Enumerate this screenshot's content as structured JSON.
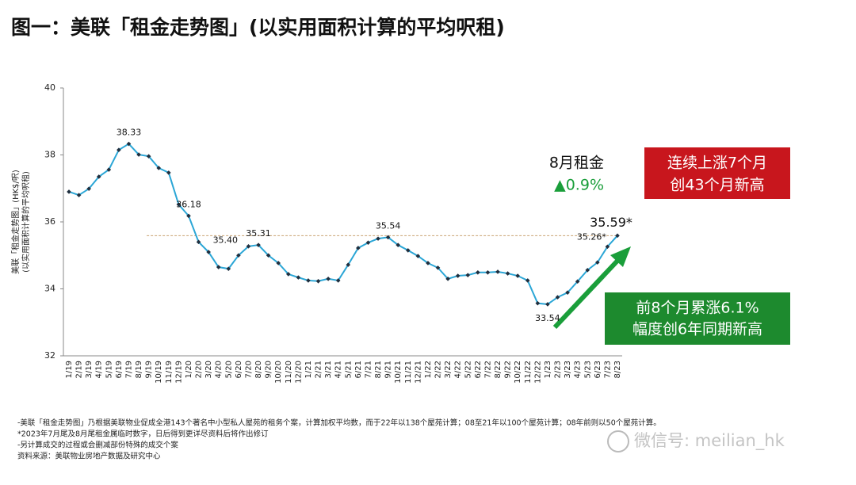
{
  "title": "图一：美联「租金走势图」(以实用面积计算的平均呎租)",
  "chart_data": {
    "type": "line",
    "y_label": [
      "美联「租金走势图」(HK$/呎)",
      "(以实用面积计算的平均呎租)"
    ],
    "categories": [
      "1/19",
      "2/19",
      "3/19",
      "4/19",
      "5/19",
      "6/19",
      "7/19",
      "8/19",
      "9/19",
      "10/19",
      "11/19",
      "12/19",
      "1/20",
      "2/20",
      "3/20",
      "4/20",
      "5/20",
      "6/20",
      "7/20",
      "8/20",
      "9/20",
      "10/20",
      "11/20",
      "12/20",
      "1/21",
      "2/21",
      "3/21",
      "4/21",
      "5/21",
      "6/21",
      "7/21",
      "8/21",
      "9/21",
      "10/21",
      "11/21",
      "12/21",
      "1/22",
      "2/22",
      "3/22",
      "4/22",
      "5/22",
      "6/22",
      "7/22",
      "8/22",
      "9/22",
      "10/22",
      "11/22",
      "12/22",
      "1/23",
      "2/23",
      "3/23",
      "4/23",
      "5/23",
      "6/23",
      "7/23",
      "8/23"
    ],
    "values": [
      36.9,
      36.8,
      36.99,
      37.35,
      37.56,
      38.15,
      38.33,
      38.01,
      37.96,
      37.61,
      37.47,
      36.52,
      36.18,
      35.4,
      35.1,
      34.65,
      34.6,
      35.0,
      35.27,
      35.31,
      35.0,
      34.77,
      34.44,
      34.34,
      34.25,
      34.23,
      34.3,
      34.25,
      34.72,
      35.22,
      35.38,
      35.5,
      35.54,
      35.31,
      35.15,
      34.98,
      34.77,
      34.63,
      34.3,
      34.39,
      34.41,
      34.49,
      34.49,
      34.51,
      34.46,
      34.39,
      34.25,
      33.57,
      33.54,
      33.75,
      33.89,
      34.22,
      34.56,
      34.79,
      35.26,
      35.59
    ],
    "value_labels": [
      null,
      null,
      null,
      null,
      null,
      null,
      "38.33",
      null,
      null,
      null,
      null,
      null,
      "36.18",
      "35.40",
      null,
      null,
      null,
      null,
      null,
      "35.31",
      null,
      null,
      null,
      null,
      null,
      null,
      null,
      null,
      null,
      null,
      null,
      null,
      "35.54",
      null,
      null,
      null,
      null,
      null,
      null,
      null,
      null,
      null,
      null,
      null,
      null,
      null,
      null,
      null,
      "33.54",
      null,
      null,
      null,
      null,
      null,
      "35.26*",
      "35.59*"
    ],
    "color": "#2ba6d6",
    "marker_color": "#1f2f3f",
    "ylim": [
      32,
      40
    ],
    "yticks": [
      32,
      34,
      36,
      38,
      40
    ],
    "callout": {
      "title": "8月租金",
      "change": "▲0.9%"
    },
    "red_box": [
      "连续上涨7个月",
      "创43个月新高"
    ],
    "green_box": [
      "前8个月累涨6.1%",
      "幅度创6年同期新高"
    ]
  },
  "footnotes": [
    "-美联「租金走势图」乃根据美联物业促成全港143个著名中小型私人屋苑的租务个案，计算加权平均数，而于22年以138个屋苑计算；08至21年以100个屋苑计算；08年前则以50个屋苑计算。",
    "*2023年7月尾及8月尾租金属临时数字，日后得到更详尽资料后将作出修订",
    "-另计算成交的过程或会删减部份特殊的成交个案",
    "资料来源：美联物业房地产数据及研究中心"
  ],
  "watermark": "微信号: meilian_hk"
}
